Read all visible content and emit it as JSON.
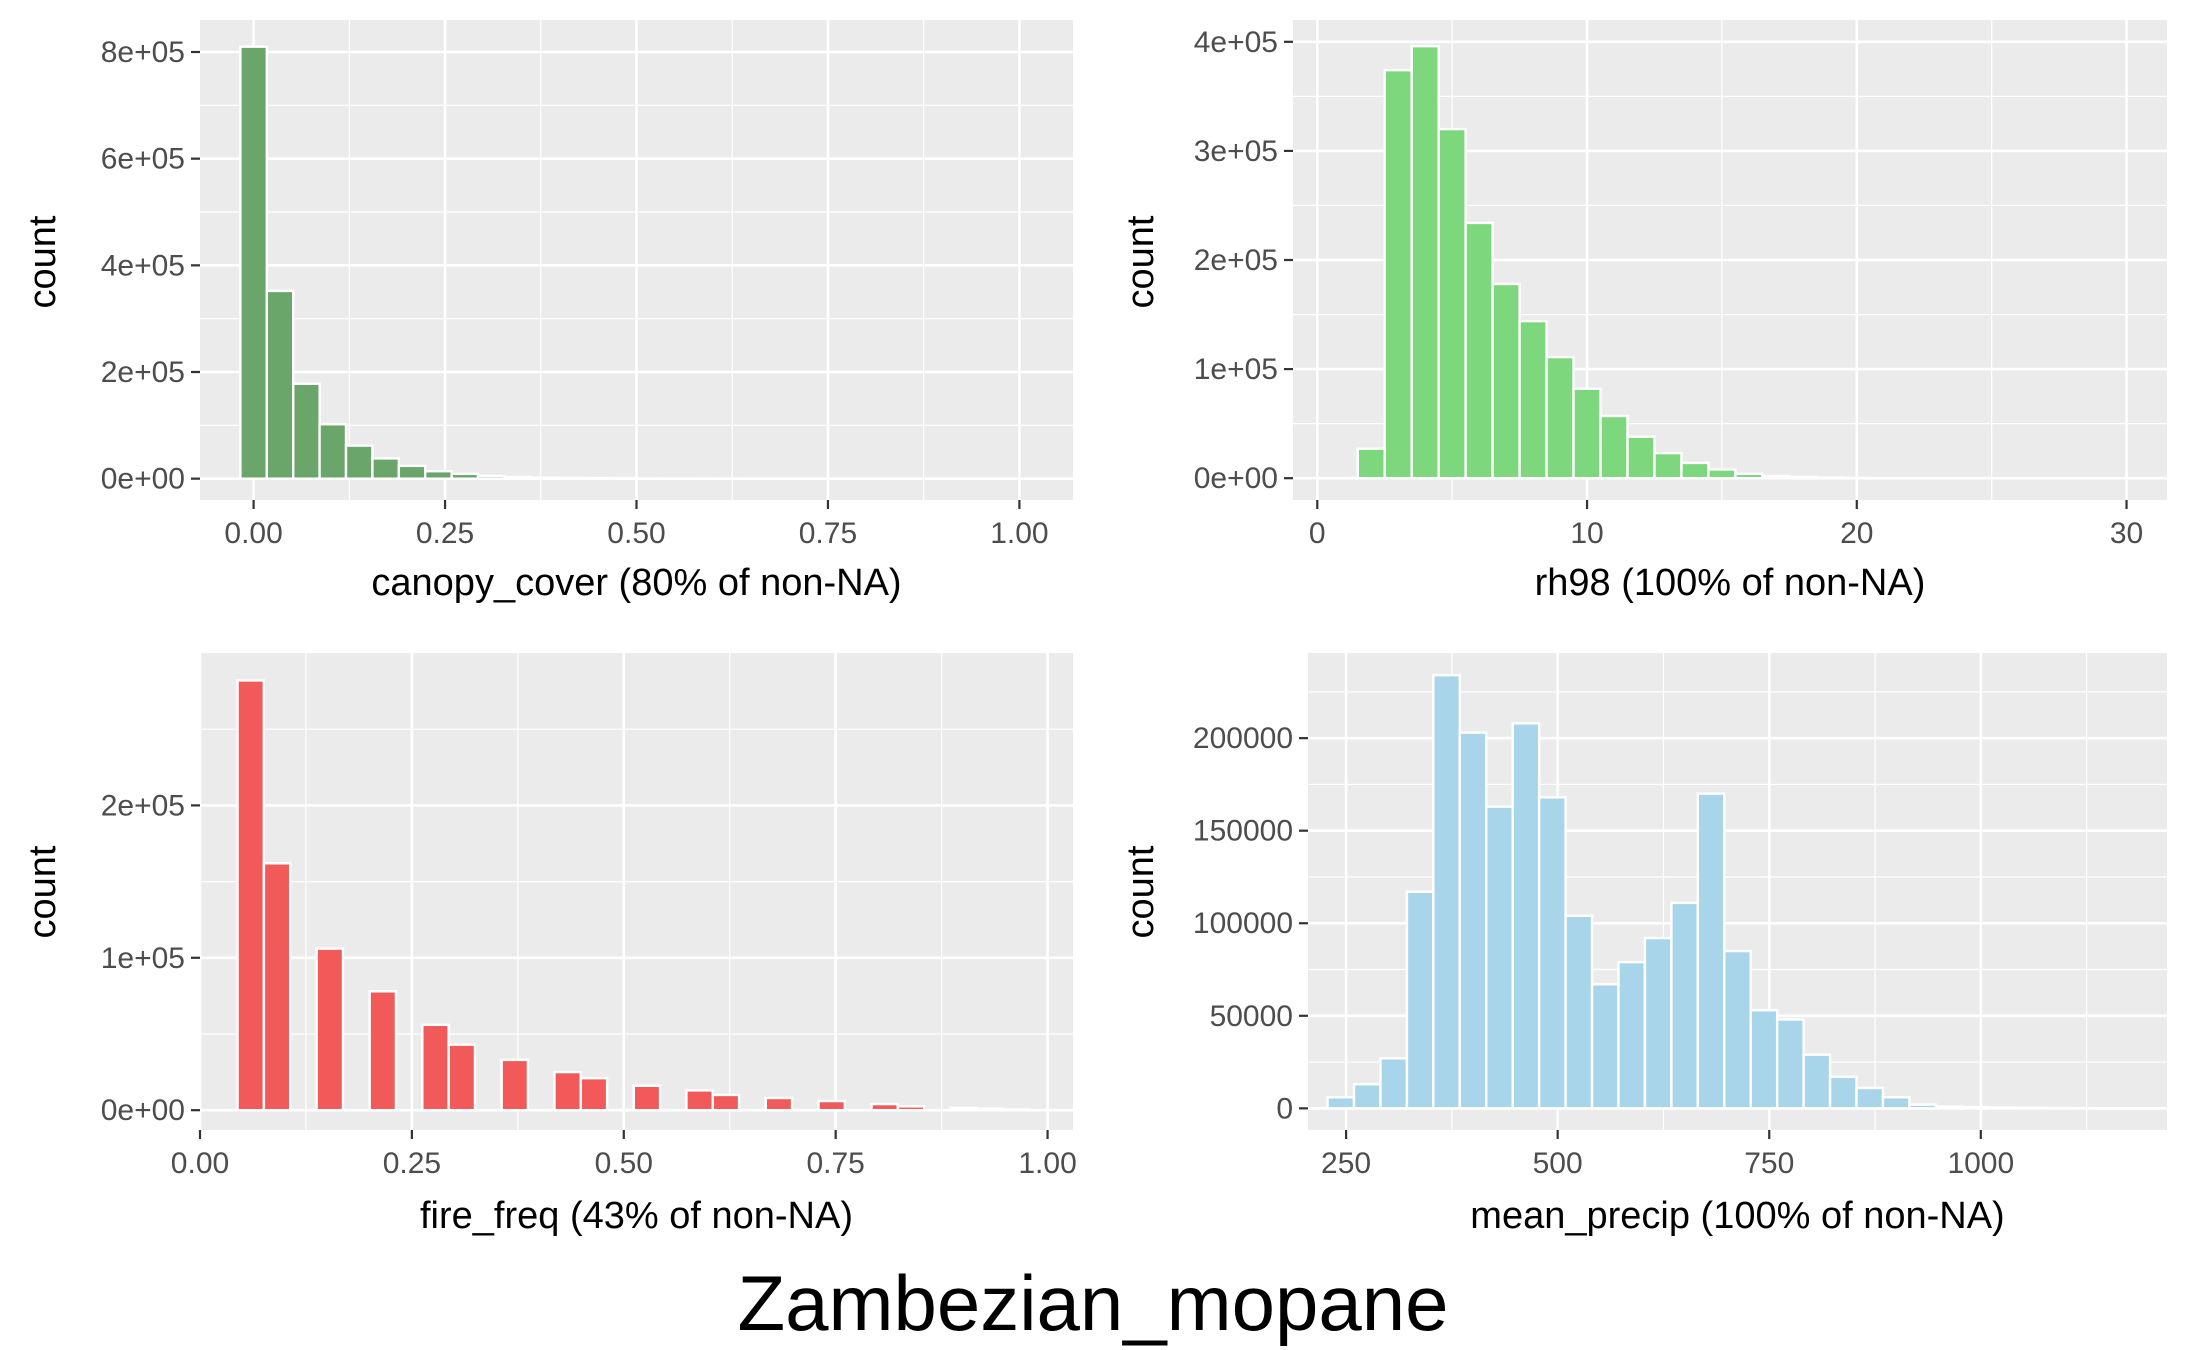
{
  "figure": {
    "title": "Zambezian_mopane",
    "background": "#ffffff",
    "panel_background": "#ebebeb",
    "grid_color": "#ffffff",
    "bar_outline": "#ffffff"
  },
  "chart_data": [
    {
      "type": "bar",
      "subtype": "histogram",
      "xlabel": "canopy_cover (80% of non-NA)",
      "ylabel": "count",
      "fill": "#6aa66a",
      "xlim": [
        -0.07,
        1.07
      ],
      "ylim": [
        -40000,
        860000
      ],
      "x_ticks": [
        0,
        0.25,
        0.5,
        0.75,
        1
      ],
      "x_tick_labels": [
        "0.00",
        "0.25",
        "0.50",
        "0.75",
        "1.00"
      ],
      "y_ticks": [
        0,
        200000,
        400000,
        600000,
        800000
      ],
      "y_tick_labels": [
        "0e+00",
        "2e+05",
        "4e+05",
        "6e+05",
        "8e+05"
      ],
      "bin_width": 0.0345,
      "bin_centers": [
        0,
        0.0345,
        0.069,
        0.1034,
        0.1379,
        0.1724,
        0.2069,
        0.2414,
        0.2759,
        0.3103,
        0.3448,
        0.3793,
        0.4138,
        0.4483,
        0.4828,
        0.5172,
        0.5517,
        0.5862,
        0.6207,
        0.6552,
        0.6897,
        0.7241,
        0.7586,
        0.7931,
        0.8276,
        0.8621,
        0.8966,
        0.931,
        0.9655,
        1
      ],
      "values": [
        810000,
        352000,
        178000,
        102000,
        62000,
        38000,
        24000,
        14000,
        9000,
        5000,
        3000,
        2000,
        1500,
        1000,
        700,
        500,
        400,
        300,
        250,
        200,
        150,
        100,
        80,
        60,
        50,
        40,
        30,
        20,
        10,
        0
      ]
    },
    {
      "type": "bar",
      "subtype": "histogram",
      "xlabel": "rh98 (100% of non-NA)",
      "ylabel": "count",
      "fill": "#7dd87d",
      "xlim": [
        -0.9,
        31.5
      ],
      "ylim": [
        -20000,
        420000
      ],
      "x_ticks": [
        0,
        10,
        20,
        30
      ],
      "x_tick_labels": [
        "0",
        "10",
        "20",
        "30"
      ],
      "y_ticks": [
        0,
        100000,
        200000,
        300000,
        400000
      ],
      "y_tick_labels": [
        "0e+00",
        "1e+05",
        "2e+05",
        "3e+05",
        "4e+05"
      ],
      "bin_width": 1,
      "bin_centers": [
        2,
        3,
        4,
        5,
        6,
        7,
        8,
        9,
        10,
        11,
        12,
        13,
        14,
        15,
        16,
        17,
        18,
        19,
        20
      ],
      "values": [
        27000,
        374000,
        396000,
        320000,
        234000,
        178000,
        144000,
        111000,
        82000,
        57000,
        38000,
        23000,
        14000,
        8000,
        4000,
        2000,
        1000,
        500,
        200
      ]
    },
    {
      "type": "bar",
      "subtype": "histogram",
      "xlabel": "fire_freq (43% of non-NA)",
      "ylabel": "count",
      "fill": "#f25a5a",
      "xlim": [
        0,
        1.03
      ],
      "ylim": [
        -13000,
        300000
      ],
      "x_ticks": [
        0,
        0.25,
        0.5,
        0.75,
        1
      ],
      "x_tick_labels": [
        "0.00",
        "0.25",
        "0.50",
        "0.75",
        "1.00"
      ],
      "y_ticks": [
        0,
        100000,
        200000
      ],
      "y_tick_labels": [
        "0e+00",
        "1e+05",
        "2e+05"
      ],
      "bin_width": 0.031,
      "bin_centers": [
        0.0598,
        0.0909,
        0.1532,
        0.2157,
        0.2778,
        0.3089,
        0.3714,
        0.4337,
        0.4648,
        0.5273,
        0.5894,
        0.6205,
        0.683,
        0.7453,
        0.8078,
        0.8389,
        0.9012,
        0.9323,
        0.9636
      ],
      "values": [
        282000,
        162000,
        106000,
        78000,
        56000,
        43000,
        33000,
        25000,
        21000,
        16000,
        13000,
        10000,
        8000,
        6000,
        4000,
        2500,
        1500,
        1000,
        500
      ]
    },
    {
      "type": "bar",
      "subtype": "histogram",
      "xlabel": "mean_precip (100% of non-NA)",
      "ylabel": "count",
      "fill": "#a8d5ea",
      "xlim": [
        205,
        1220
      ],
      "ylim": [
        -11700,
        246000
      ],
      "x_ticks": [
        250,
        500,
        750,
        1000
      ],
      "x_tick_labels": [
        "250",
        "500",
        "750",
        "1000"
      ],
      "y_ticks": [
        0,
        50000,
        100000,
        150000,
        200000
      ],
      "y_tick_labels": [
        "0",
        "50000",
        "100000",
        "150000",
        "200000"
      ],
      "bin_width": 31.25,
      "bin_centers": [
        243.75,
        275,
        306.25,
        337.5,
        368.75,
        400,
        431.25,
        462.5,
        493.75,
        525,
        556.25,
        587.5,
        618.75,
        650,
        681.25,
        712.5,
        743.75,
        775,
        806.25,
        837.5,
        868.75,
        900,
        931.25,
        962.5,
        993.75,
        1025,
        1056.25,
        1087.5,
        1118.75,
        1150
      ],
      "values": [
        6000,
        13000,
        27000,
        117000,
        234000,
        203000,
        163000,
        208000,
        168000,
        104000,
        67000,
        79000,
        92000,
        111000,
        170000,
        85000,
        53000,
        48000,
        29000,
        17000,
        11000,
        6000,
        2000,
        1000,
        700,
        500,
        300,
        200,
        100,
        50
      ]
    }
  ]
}
